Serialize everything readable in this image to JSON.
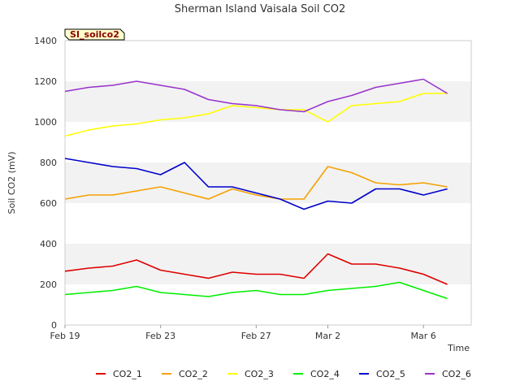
{
  "chart_data": {
    "type": "line",
    "title": "Sherman Island Vaisala Soil CO2",
    "tag": "SI_soilco2",
    "xlabel": "Time",
    "ylabel": "Soil CO2 (mV)",
    "xlim": [
      "2025-02-19",
      "2025-03-08"
    ],
    "ylim": [
      0,
      1400
    ],
    "y_ticks": [
      0,
      200,
      400,
      600,
      800,
      1000,
      1200,
      1400
    ],
    "x_ticks": [
      {
        "date": "2025-02-19",
        "label": "Feb 19"
      },
      {
        "date": "2025-02-23",
        "label": "Feb 23"
      },
      {
        "date": "2025-02-27",
        "label": "Feb 27"
      },
      {
        "date": "2025-03-02",
        "label": "Mar 2"
      },
      {
        "date": "2025-03-06",
        "label": "Mar 6"
      }
    ],
    "grid": "horizontal alternating bands",
    "legend_position": "bottom",
    "x": [
      "2025-02-19",
      "2025-02-20",
      "2025-02-21",
      "2025-02-22",
      "2025-02-23",
      "2025-02-24",
      "2025-02-25",
      "2025-02-26",
      "2025-02-27",
      "2025-02-28",
      "2025-03-01",
      "2025-03-02",
      "2025-03-03",
      "2025-03-04",
      "2025-03-05",
      "2025-03-06",
      "2025-03-07"
    ],
    "series": [
      {
        "name": "CO2_1",
        "color": "#dd0000",
        "values": [
          265,
          280,
          290,
          320,
          270,
          250,
          230,
          260,
          250,
          250,
          230,
          350,
          300,
          300,
          280,
          250,
          200
        ]
      },
      {
        "name": "CO2_2",
        "color": "#f5a100",
        "values": [
          620,
          640,
          640,
          660,
          680,
          650,
          620,
          670,
          640,
          620,
          620,
          780,
          750,
          700,
          690,
          700,
          680
        ]
      },
      {
        "name": "CO2_3",
        "color": "#ffff00",
        "values": [
          930,
          960,
          980,
          990,
          1010,
          1020,
          1040,
          1080,
          1070,
          1060,
          1060,
          1000,
          1080,
          1090,
          1100,
          1140,
          1140
        ]
      },
      {
        "name": "CO2_4",
        "color": "#00ee00",
        "values": [
          150,
          160,
          170,
          190,
          160,
          150,
          140,
          160,
          170,
          150,
          150,
          170,
          180,
          190,
          210,
          170,
          130
        ]
      },
      {
        "name": "CO2_5",
        "color": "#0000cc",
        "values": [
          820,
          800,
          780,
          770,
          740,
          800,
          680,
          680,
          650,
          620,
          570,
          610,
          600,
          670,
          670,
          640,
          670
        ]
      },
      {
        "name": "CO2_6",
        "color": "#9933cc",
        "values": [
          1150,
          1170,
          1180,
          1200,
          1180,
          1160,
          1110,
          1090,
          1080,
          1060,
          1050,
          1100,
          1130,
          1170,
          1190,
          1210,
          1140
        ]
      }
    ]
  }
}
